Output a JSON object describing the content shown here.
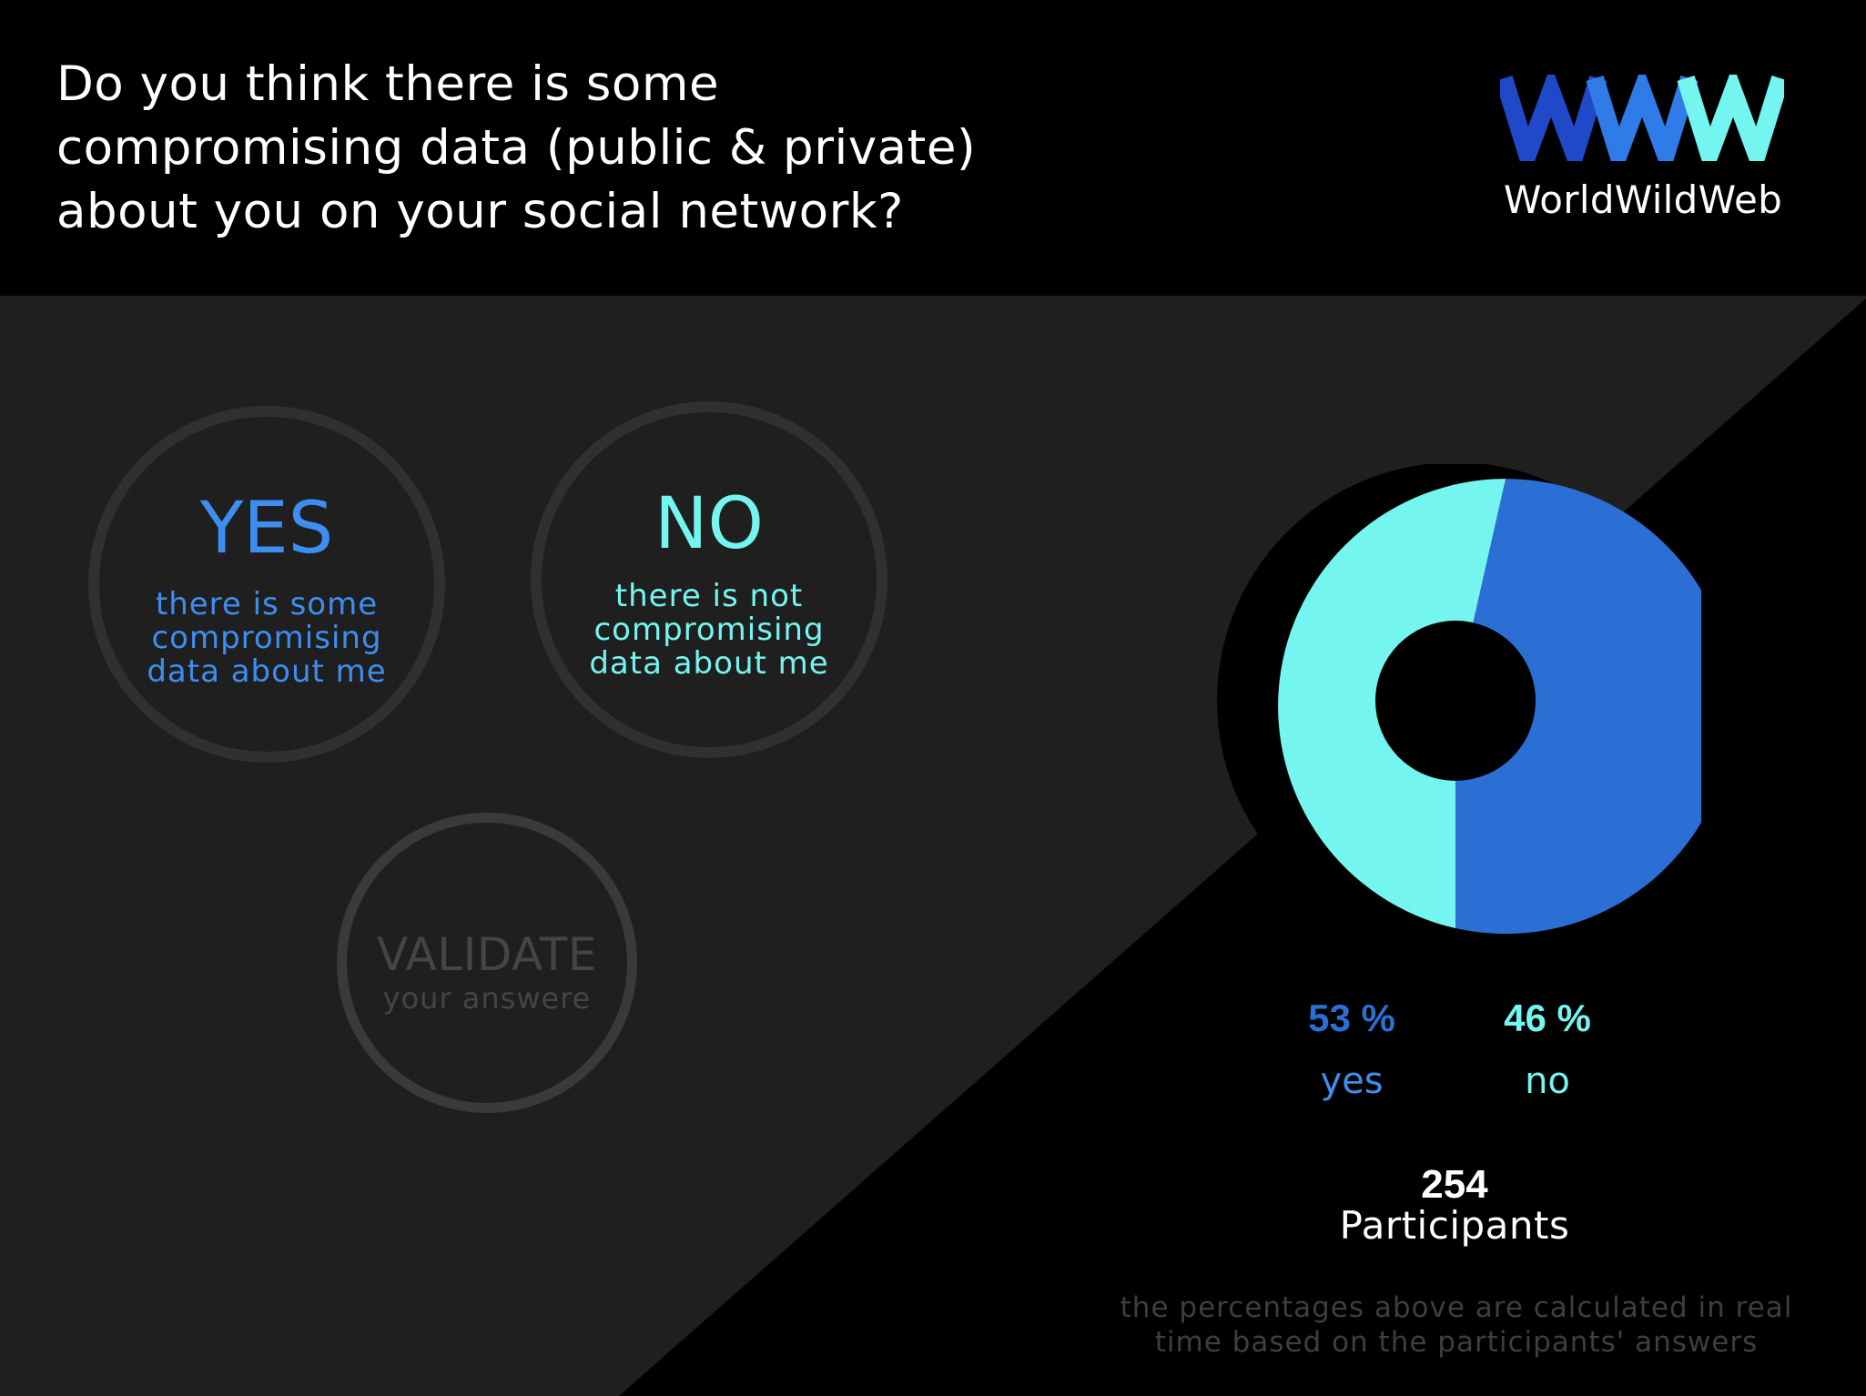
{
  "question": {
    "lines": [
      "Do you think there is some",
      "compromising data (public & private)",
      "about you on your social network?"
    ]
  },
  "brand": {
    "logo_mark": "WWW",
    "name": "WorldWildWeb"
  },
  "options": {
    "yes": {
      "title": "YES",
      "description_lines": [
        "there is some",
        "compromising",
        "data about me"
      ]
    },
    "no": {
      "title": "NO",
      "description_lines": [
        "there is not",
        "compromising",
        "data about me"
      ]
    }
  },
  "validate": {
    "label": "VALIDATE",
    "sublabel": "your answere"
  },
  "results": {
    "yes_percent": "53 %",
    "yes_label": "yes",
    "no_percent": "46 %",
    "no_label": "no",
    "participants_count": "254",
    "participants_label": "Participants",
    "footnote_lines": [
      "the percentages above are calculated in real",
      "time based on the participants' answers"
    ]
  },
  "chart_data": {
    "type": "pie",
    "categories": [
      "yes",
      "no"
    ],
    "values": [
      53,
      46
    ],
    "colors": [
      "#2c6fd4",
      "#74f5f0"
    ]
  },
  "colors": {
    "yes_blue": "#3d8ef0",
    "no_cyan": "#74f5f0",
    "panel_dark": "#1f1f1f",
    "background": "#000000"
  }
}
